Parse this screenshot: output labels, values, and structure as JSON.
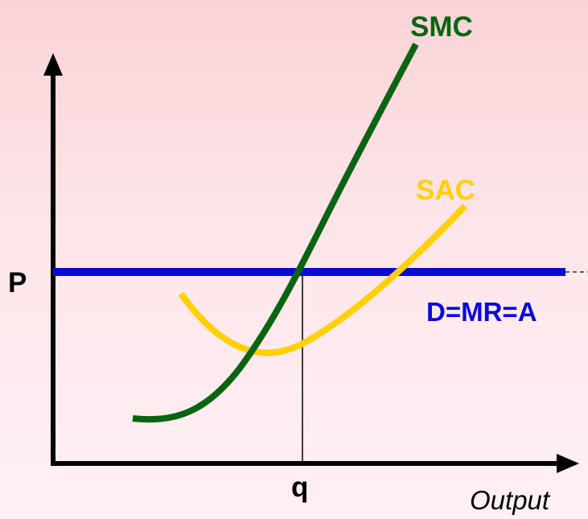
{
  "diagram": {
    "price_label": "P",
    "quantity_label": "q",
    "x_axis_label": "Output",
    "curves": {
      "smc": {
        "label": "SMC",
        "color": "#0a6412"
      },
      "sac": {
        "label": "SAC",
        "color": "#ffd100"
      },
      "demand": {
        "label": "D=MR=A",
        "color": "#0a0ad8"
      }
    },
    "axis_color": "#000000"
  }
}
